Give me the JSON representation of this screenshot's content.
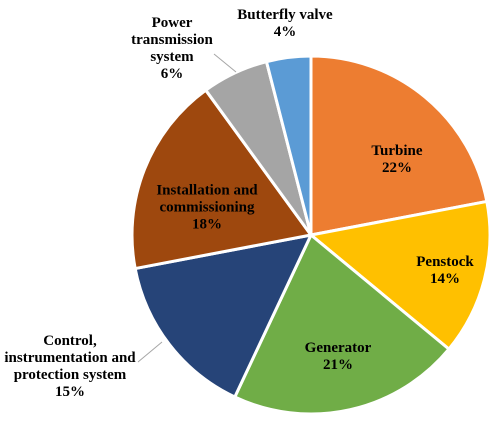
{
  "chart_data": {
    "type": "pie",
    "categories": [
      "Turbine",
      "Penstock",
      "Generator",
      "Control, instrumentation and protection system",
      "Installation and commissioning",
      "Power transmission system",
      "Butterfly valve"
    ],
    "values": [
      22,
      14,
      21,
      15,
      18,
      6,
      4
    ],
    "value_labels": [
      "22%",
      "14%",
      "21%",
      "15%",
      "18%",
      "6%",
      "4%"
    ],
    "colors": [
      "#ED7D31",
      "#FFC000",
      "#70AD47",
      "#264478",
      "#9E480E",
      "#A5A5A5",
      "#5B9BD5"
    ]
  }
}
